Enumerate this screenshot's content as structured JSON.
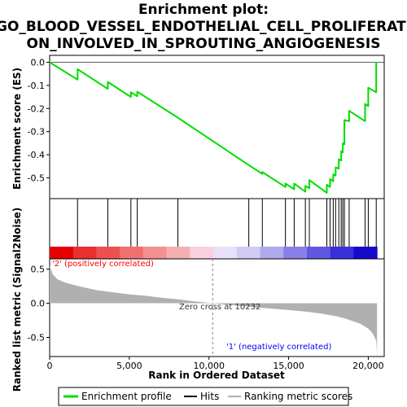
{
  "chart_data": {
    "type": "line",
    "title_lines": [
      "Enrichment plot:",
      "GO_BLOOD_VESSEL_ENDOTHELIAL_CELL_PROLIFERATI",
      "ON_INVOLVED_IN_SPROUTING_ANGIOGENESIS"
    ],
    "xlabel": "Rank in Ordered Dataset",
    "ylabel_top": "Enrichment score (ES)",
    "ylabel_bottom": "Ranked list metric (Signal2Noise)",
    "xlim": [
      0,
      21000
    ],
    "x_ticks": [
      0,
      5000,
      10000,
      15000,
      20000
    ],
    "x_tick_labels": [
      "0",
      "5,000",
      "10,000",
      "15,000",
      "20,000"
    ],
    "es_ylim": [
      -0.59,
      0.03
    ],
    "es_ticks": [
      0.0,
      -0.1,
      -0.2,
      -0.3,
      -0.4,
      -0.5
    ],
    "es_tick_labels": [
      "0.0",
      "-0.1",
      "-0.2",
      "-0.3",
      "-0.4",
      "-0.5"
    ],
    "metric_ylim": [
      -0.78,
      0.65
    ],
    "metric_ticks": [
      0.5,
      0.0,
      -0.5
    ],
    "metric_tick_labels": [
      "0.5",
      "0.0",
      "-0.5"
    ],
    "hits": [
      1750,
      3650,
      5100,
      5500,
      8050,
      12500,
      13350,
      14800,
      15350,
      16050,
      16300,
      17400,
      17600,
      17800,
      17950,
      18150,
      18300,
      18400,
      18500,
      18800,
      19800,
      20000,
      20500
    ],
    "es_x": [
      0,
      1750,
      1750,
      3650,
      3650,
      5100,
      5100,
      5500,
      5500,
      8050,
      8050,
      12500,
      12500,
      13350,
      13350,
      14800,
      14800,
      15350,
      15350,
      16050,
      16050,
      16300,
      16300,
      17400,
      17400,
      17600,
      17600,
      17800,
      17800,
      17950,
      17950,
      18150,
      18150,
      18300,
      18300,
      18400,
      18400,
      18500,
      18500,
      18800,
      18800,
      19800,
      19800,
      20000,
      20000,
      20500,
      20500
    ],
    "es_y": [
      0.0,
      -0.075,
      -0.03,
      -0.115,
      -0.085,
      -0.15,
      -0.13,
      -0.147,
      -0.127,
      -0.24,
      -0.24,
      -0.445,
      -0.445,
      -0.483,
      -0.475,
      -0.54,
      -0.525,
      -0.55,
      -0.525,
      -0.56,
      -0.535,
      -0.545,
      -0.51,
      -0.565,
      -0.53,
      -0.54,
      -0.505,
      -0.515,
      -0.485,
      -0.49,
      -0.455,
      -0.46,
      -0.42,
      -0.425,
      -0.385,
      -0.39,
      -0.35,
      -0.355,
      -0.25,
      -0.255,
      -0.21,
      -0.255,
      -0.18,
      -0.19,
      -0.11,
      -0.13,
      0.0
    ],
    "metric_x": [
      0,
      200,
      500,
      1000,
      2000,
      3000,
      4000,
      5000,
      6000,
      7000,
      8000,
      9000,
      10232,
      11000,
      12000,
      13000,
      14000,
      15000,
      16000,
      17000,
      18000,
      18500,
      19000,
      19500,
      20000,
      20300,
      20500,
      20550
    ],
    "metric_y": [
      0.55,
      0.42,
      0.35,
      0.3,
      0.24,
      0.19,
      0.16,
      0.13,
      0.11,
      0.08,
      0.06,
      0.03,
      0.0,
      -0.02,
      -0.04,
      -0.06,
      -0.08,
      -0.1,
      -0.12,
      -0.15,
      -0.19,
      -0.22,
      -0.26,
      -0.3,
      -0.37,
      -0.45,
      -0.55,
      -0.75
    ],
    "zero_cross": 10232,
    "zero_cross_label": "Zero cross at 10232",
    "pos_label": "'2' (positively correlated)",
    "neg_label": "'1' (negatively correlated)",
    "legend": [
      "Enrichment profile",
      "Hits",
      "Ranking metric scores"
    ],
    "colors": {
      "es_line": "#00dd00",
      "hits": "#000000",
      "metric_fill": "#b0b0b0",
      "pos_text": "#ff0000",
      "neg_text": "#0000ff",
      "zero_line": "#808080"
    },
    "bar_colors": [
      "#e40000",
      "#e83030",
      "#ee5050",
      "#f07070",
      "#f39090",
      "#f7b0b0",
      "#fad0e0",
      "#e8e0f8",
      "#d0ccf4",
      "#b0a8ee",
      "#8880e8",
      "#6058e0",
      "#3830d8",
      "#1808c8"
    ]
  }
}
